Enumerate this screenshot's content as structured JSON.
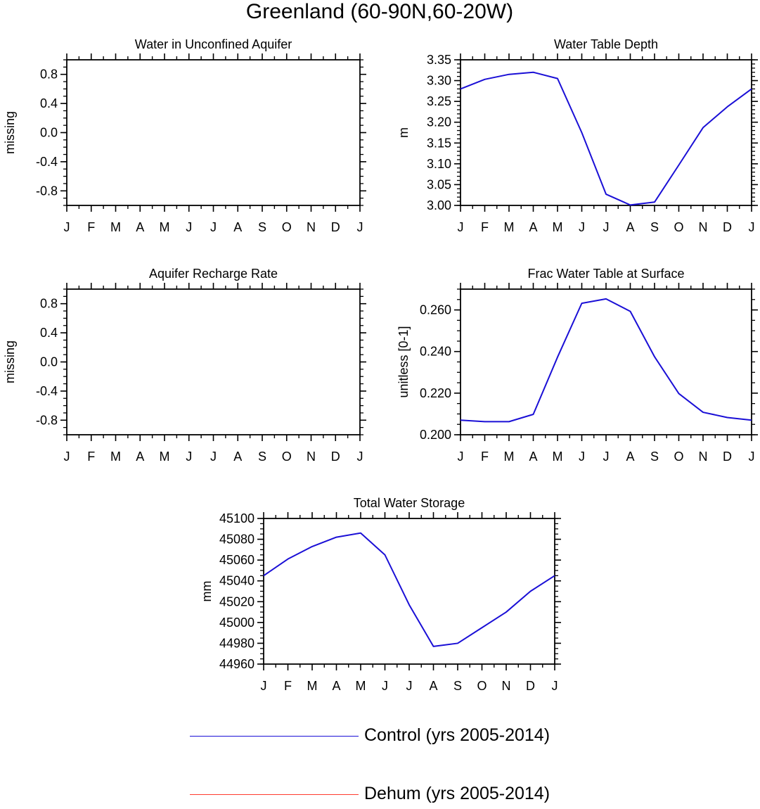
{
  "figure": {
    "title": "Greenland (60-90N,60-20W)"
  },
  "colors": {
    "control": "#1a0fd6",
    "dehum": "#ff3b2f",
    "axis": "#000000"
  },
  "legend": [
    {
      "label": "Control (yrs 2005-2014)",
      "color": "#1a0fd6"
    },
    {
      "label": "Dehum (yrs 2005-2014)",
      "color": "#ff3b2f"
    }
  ],
  "chart_data": [
    {
      "id": "p1",
      "type": "line",
      "title": "Water in Unconfined Aquifer",
      "ylabel": "missing",
      "categories": [
        "J",
        "F",
        "M",
        "A",
        "M",
        "J",
        "J",
        "A",
        "S",
        "O",
        "N",
        "D",
        "J"
      ],
      "ylim": [
        -1.0,
        1.0
      ],
      "yticks": [
        -0.8,
        -0.4,
        0.0,
        0.4,
        0.8
      ],
      "ytick_labels": [
        "-0.8",
        "-0.4",
        "0.0",
        "0.4",
        "0.8"
      ],
      "yminor": 0.1,
      "series": []
    },
    {
      "id": "p2",
      "type": "line",
      "title": "Water Table Depth",
      "ylabel": "m",
      "categories": [
        "J",
        "F",
        "M",
        "A",
        "M",
        "J",
        "J",
        "A",
        "S",
        "O",
        "N",
        "D",
        "J"
      ],
      "ylim": [
        3.0,
        3.35
      ],
      "yticks": [
        3.0,
        3.05,
        3.1,
        3.15,
        3.2,
        3.25,
        3.3,
        3.35
      ],
      "ytick_labels": [
        "3.00",
        "3.05",
        "3.10",
        "3.15",
        "3.20",
        "3.25",
        "3.30",
        "3.35"
      ],
      "yminor": 0.01,
      "series": [
        {
          "name": "Control (yrs 2005-2014)",
          "color": "#1a0fd6",
          "values": [
            3.28,
            3.303,
            3.315,
            3.32,
            3.305,
            3.175,
            3.027,
            3.001,
            3.008,
            3.097,
            3.187,
            3.237,
            3.28
          ]
        }
      ]
    },
    {
      "id": "p3",
      "type": "line",
      "title": "Aquifer Recharge Rate",
      "ylabel": "missing",
      "categories": [
        "J",
        "F",
        "M",
        "A",
        "M",
        "J",
        "J",
        "A",
        "S",
        "O",
        "N",
        "D",
        "J"
      ],
      "ylim": [
        -1.0,
        1.0
      ],
      "yticks": [
        -0.8,
        -0.4,
        0.0,
        0.4,
        0.8
      ],
      "ytick_labels": [
        "-0.8",
        "-0.4",
        "0.0",
        "0.4",
        "0.8"
      ],
      "yminor": 0.1,
      "series": []
    },
    {
      "id": "p4",
      "type": "line",
      "title": "Frac Water Table at Surface",
      "ylabel": "unitless [0-1]",
      "categories": [
        "J",
        "F",
        "M",
        "A",
        "M",
        "J",
        "J",
        "A",
        "S",
        "O",
        "N",
        "D",
        "J"
      ],
      "ylim": [
        0.2,
        0.27
      ],
      "yticks": [
        0.2,
        0.22,
        0.24,
        0.26
      ],
      "ytick_labels": [
        "0.200",
        "0.220",
        "0.240",
        "0.260"
      ],
      "yminor": 0.005,
      "series": [
        {
          "name": "Control (yrs 2005-2014)",
          "color": "#1a0fd6",
          "values": [
            0.207,
            0.2063,
            0.2063,
            0.2098,
            0.2373,
            0.2632,
            0.2653,
            0.2593,
            0.2375,
            0.2198,
            0.2108,
            0.2083,
            0.207
          ]
        }
      ]
    },
    {
      "id": "p5",
      "type": "line",
      "title": "Total Water Storage",
      "ylabel": "mm",
      "categories": [
        "J",
        "F",
        "M",
        "A",
        "M",
        "J",
        "J",
        "A",
        "S",
        "O",
        "N",
        "D",
        "J"
      ],
      "ylim": [
        44960,
        45100
      ],
      "yticks": [
        44960,
        44980,
        45000,
        45020,
        45040,
        45060,
        45080,
        45100
      ],
      "ytick_labels": [
        "44960",
        "44980",
        "45000",
        "45020",
        "45040",
        "45060",
        "45080",
        "45100"
      ],
      "yminor": 5,
      "series": [
        {
          "name": "Control (yrs 2005-2014)",
          "color": "#1a0fd6",
          "values": [
            45045,
            45061,
            45073,
            45082,
            45086,
            45065,
            45017,
            44977,
            44980,
            44995,
            45010,
            45030,
            45045
          ]
        }
      ]
    }
  ]
}
